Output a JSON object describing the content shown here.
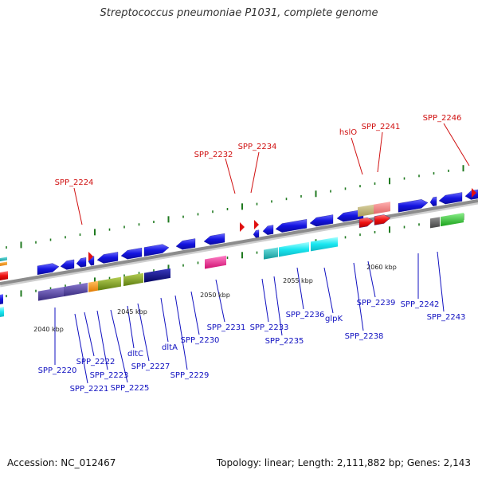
{
  "title": "Streptococcus pneumoniae P1031, complete genome",
  "footer": {
    "accession": "Accession: NC_012467",
    "summary": "Topology: linear; Length: 2,111,882 bp; Genes: 2,143"
  },
  "colors": {
    "backbone": "#8c8c8c",
    "forward_gene": "#1010e6",
    "rna_marker": "#e01010",
    "red_label": "#d01010",
    "blue_label": "#1010c0",
    "tick_green": "#207a20"
  },
  "scale_labels": [
    "2040 kbp",
    "2045 kbp",
    "2050 kbp",
    "2055 kbp",
    "2060 kbp"
  ],
  "top_labels": [
    "SPP_2224",
    "SPP_2232",
    "SPP_2234",
    "hslO",
    "SPP_2241",
    "SPP_2246"
  ],
  "bottom_labels": [
    "SPP_2220",
    "SPP_2221",
    "SPP_2222",
    "SPP_2223",
    "SPP_2225",
    "dltC",
    "SPP_2227",
    "dltA",
    "SPP_2229",
    "SPP_2230",
    "SPP_2231",
    "SPP_2233",
    "SPP_2235",
    "SPP_2236",
    "glpK",
    "SPP_2238",
    "SPP_2239",
    "SPP_2242",
    "SPP_2243"
  ]
}
